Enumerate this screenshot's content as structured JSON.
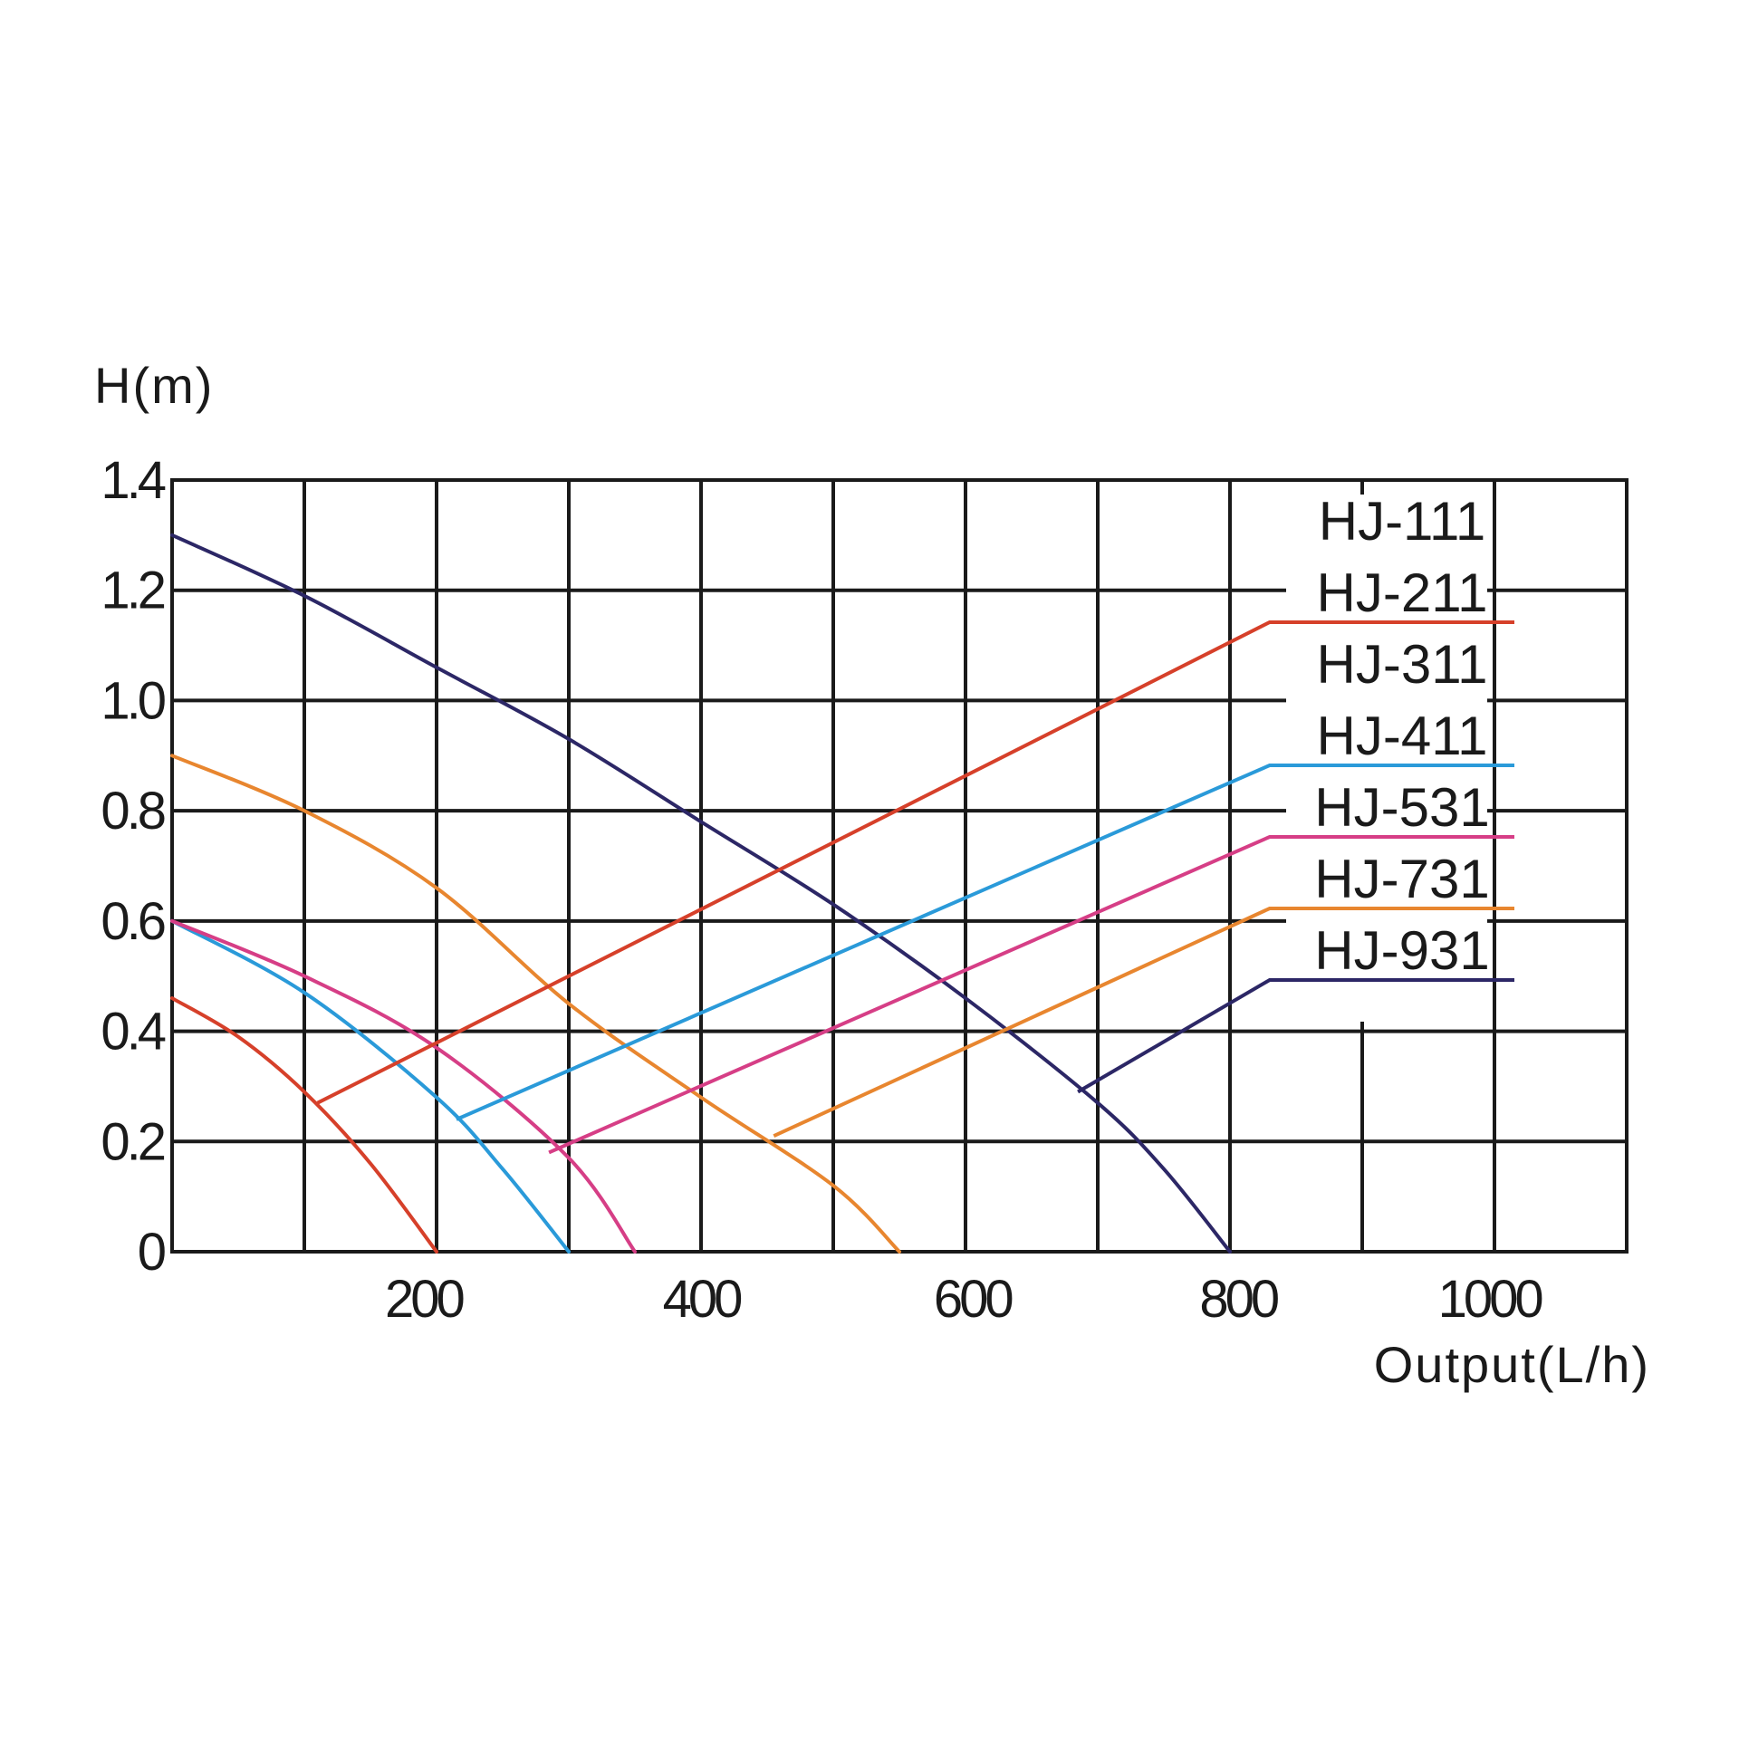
{
  "chart_data": {
    "type": "line",
    "xlabel": "Output(L/h)",
    "ylabel": "H(m)",
    "xlim": [
      0,
      1100
    ],
    "ylim": [
      0,
      1.4
    ],
    "grid": true,
    "grid_x": [
      100,
      200,
      300,
      400,
      500,
      600,
      700,
      800,
      900,
      1000
    ],
    "grid_y": [
      0.2,
      0.4,
      0.6,
      0.8,
      1.0,
      1.2
    ],
    "x_ticks": [
      {
        "value": 190,
        "label": "200"
      },
      {
        "value": 400,
        "label": "400"
      },
      {
        "value": 605,
        "label": "600"
      },
      {
        "value": 806,
        "label": "800"
      },
      {
        "value": 996,
        "label": "1000"
      }
    ],
    "y_ticks": [
      {
        "value": 0,
        "label": "0"
      },
      {
        "value": 0.2,
        "label": "0.2"
      },
      {
        "value": 0.4,
        "label": "0.4"
      },
      {
        "value": 0.6,
        "label": "0.6"
      },
      {
        "value": 0.8,
        "label": "0.8"
      },
      {
        "value": 1.0,
        "label": "1.0"
      },
      {
        "value": 1.2,
        "label": "1.2"
      },
      {
        "value": 1.4,
        "label": "1.4"
      }
    ],
    "legend_position": "top-right",
    "series": [
      {
        "name": "HJ-111",
        "color": "#d6402a",
        "points": [
          [
            0,
            0.46
          ],
          [
            50,
            0.39
          ],
          [
            100,
            0.29
          ],
          [
            150,
            0.16
          ],
          [
            200,
            0.0
          ]
        ]
      },
      {
        "name": "HJ-211",
        "color": "#2a9ad9",
        "points": [
          [
            0,
            0.6
          ],
          [
            100,
            0.47
          ],
          [
            200,
            0.28
          ],
          [
            250,
            0.15
          ],
          [
            300,
            0.0
          ]
        ]
      },
      {
        "name": "HJ-311",
        "color": "#d63e86",
        "points": [
          [
            0,
            0.6
          ],
          [
            100,
            0.5
          ],
          [
            200,
            0.37
          ],
          [
            300,
            0.17
          ],
          [
            350,
            0.0
          ]
        ]
      },
      {
        "name": "HJ-411",
        "color": "#e8862f",
        "points": [
          [
            0,
            0.9
          ],
          [
            100,
            0.8
          ],
          [
            200,
            0.66
          ],
          [
            300,
            0.45
          ],
          [
            400,
            0.28
          ],
          [
            500,
            0.12
          ],
          [
            550,
            0.0
          ]
        ]
      },
      {
        "name": "HJ-931",
        "color": "#2c2766",
        "points": [
          [
            0,
            1.3
          ],
          [
            100,
            1.19
          ],
          [
            200,
            1.06
          ],
          [
            300,
            0.93
          ],
          [
            400,
            0.78
          ],
          [
            500,
            0.63
          ],
          [
            600,
            0.46
          ],
          [
            700,
            0.27
          ],
          [
            750,
            0.15
          ],
          [
            800,
            0.0
          ]
        ]
      }
    ],
    "legend_entries": [
      {
        "label": "HJ-111",
        "color": null,
        "leader": null
      },
      {
        "label": "HJ-211",
        "color": "#d6402a",
        "leader": [
          [
            110,
            0.27
          ],
          [
            830,
            1.1
          ]
        ]
      },
      {
        "label": "HJ-311",
        "color": null,
        "leader": null
      },
      {
        "label": "HJ-411",
        "color": "#2a9ad9",
        "leader": [
          [
            215,
            0.24
          ],
          [
            830,
            0.85
          ]
        ]
      },
      {
        "label": "HJ-531",
        "color": "#d63e86",
        "leader": [
          [
            285,
            0.18
          ],
          [
            830,
            0.72
          ]
        ]
      },
      {
        "label": "HJ-731",
        "color": "#e8862f",
        "leader": [
          [
            455,
            0.21
          ],
          [
            830,
            0.6
          ]
        ]
      },
      {
        "label": "HJ-931",
        "color": "#2c2766",
        "leader": [
          [
            685,
            0.29
          ],
          [
            830,
            0.45
          ]
        ]
      }
    ]
  }
}
